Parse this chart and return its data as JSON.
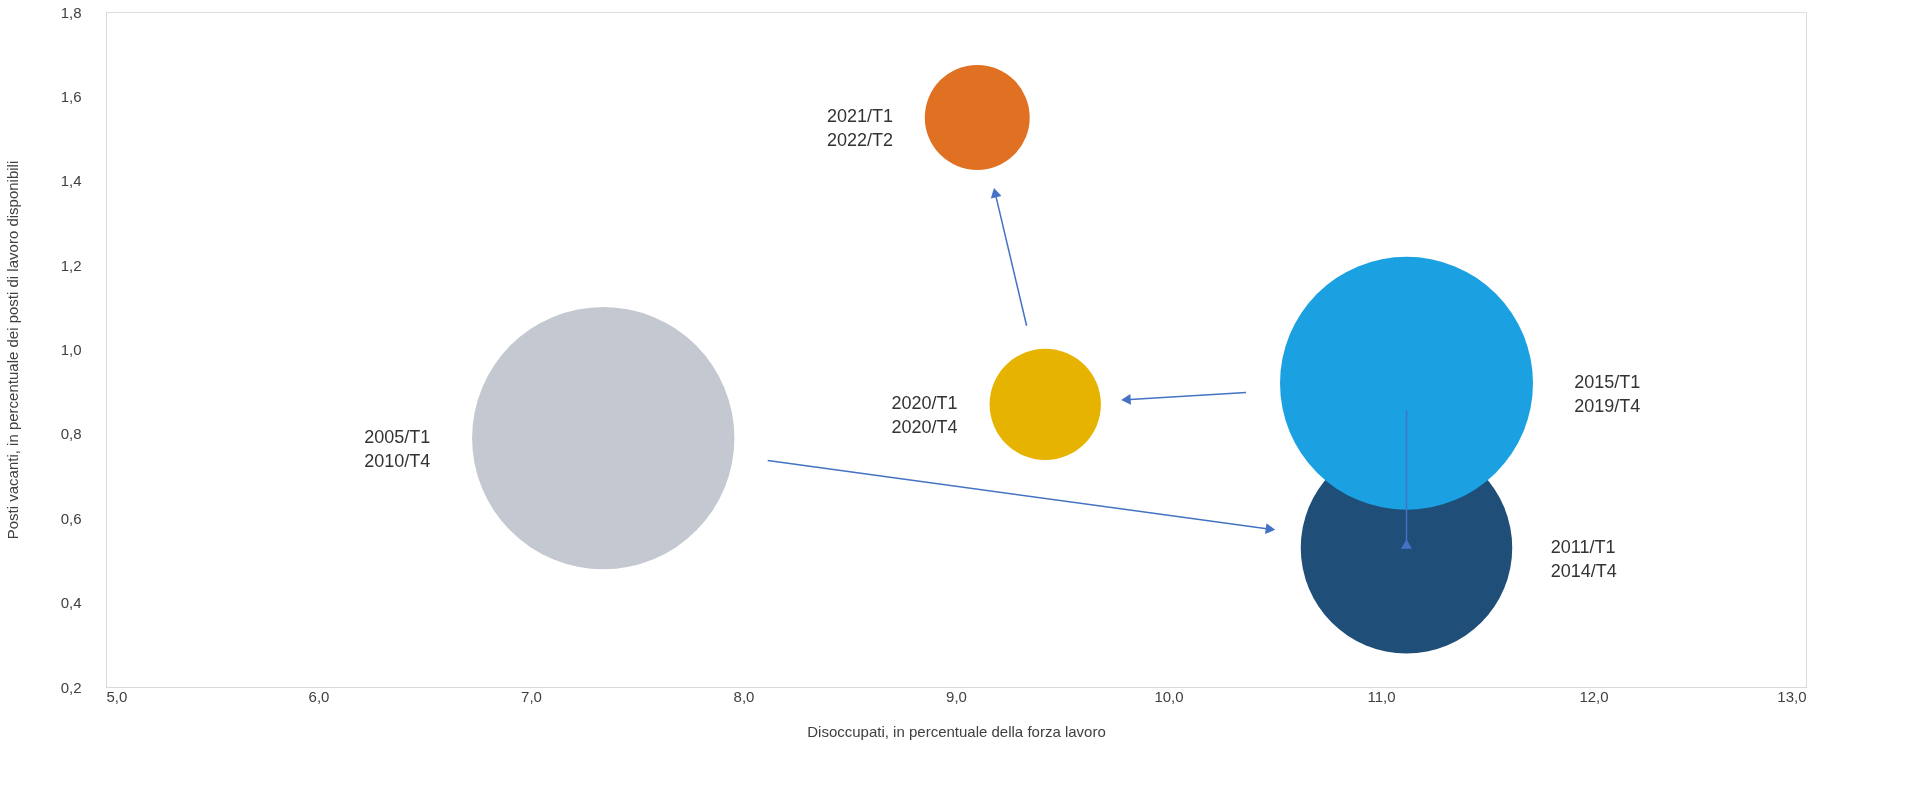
{
  "chart_data": {
    "type": "bubble",
    "xlabel": "Disoccupati, in percentuale della forza lavoro",
    "ylabel": "Posti vacanti, in percentuale dei posti di lavoro disponibili",
    "xlim": [
      5.0,
      13.0
    ],
    "ylim": [
      0.2,
      1.8
    ],
    "xticks": [
      {
        "value": 5,
        "label": "5,0"
      },
      {
        "value": 6,
        "label": "6,0"
      },
      {
        "value": 7,
        "label": "7,0"
      },
      {
        "value": 8,
        "label": "8,0"
      },
      {
        "value": 9,
        "label": "9,0"
      },
      {
        "value": 10,
        "label": "10,0"
      },
      {
        "value": 11,
        "label": "11,0"
      },
      {
        "value": 12,
        "label": "12,0"
      },
      {
        "value": 13,
        "label": "13,0"
      }
    ],
    "yticks": [
      {
        "value": 0.2,
        "label": "0,2"
      },
      {
        "value": 0.4,
        "label": "0,4"
      },
      {
        "value": 0.6,
        "label": "0,6"
      },
      {
        "value": 0.8,
        "label": "0,8"
      },
      {
        "value": 1.0,
        "label": "1,0"
      },
      {
        "value": 1.2,
        "label": "1,2"
      },
      {
        "value": 1.4,
        "label": "1,4"
      },
      {
        "value": 1.6,
        "label": "1,6"
      },
      {
        "value": 1.8,
        "label": "1,8"
      }
    ],
    "grid": false,
    "legend": false,
    "series": [
      {
        "name": "2005/T1\n2010/T4",
        "color": "#c4c8d0",
        "x": [
          7.34
        ],
        "values": [
          0.79
        ],
        "sizes": [
          1
        ]
      },
      {
        "name": "2011/T1\n2014/T4",
        "color": "#1f4e79",
        "x": [
          11.12
        ],
        "values": [
          0.53
        ],
        "sizes": [
          0.65
        ]
      },
      {
        "name": "2015/T1\n2019/T4",
        "color": "#1ba1e2",
        "x": [
          11.12
        ],
        "values": [
          0.92
        ],
        "sizes": [
          0.93
        ]
      },
      {
        "name": "2020/T1\n2020/T4",
        "color": "#e6b400",
        "x": [
          9.42
        ],
        "values": [
          0.87
        ],
        "sizes": [
          0.18
        ]
      },
      {
        "name": "2021/T1\n2022/T2",
        "color": "#e07022",
        "x": [
          9.1
        ],
        "values": [
          1.55
        ],
        "sizes": [
          0.16
        ]
      }
    ]
  }
}
